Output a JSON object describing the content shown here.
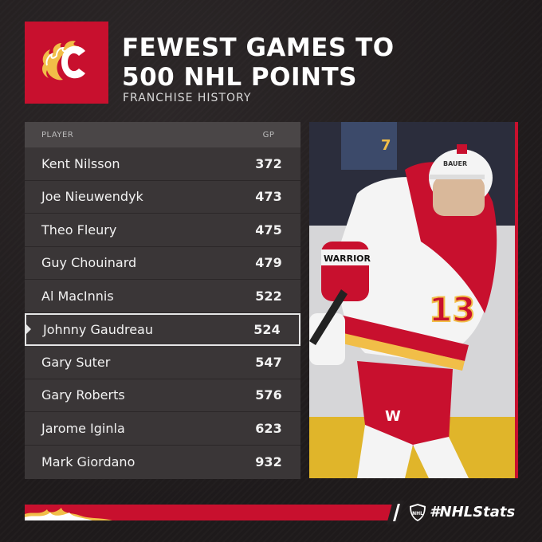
{
  "header": {
    "title_line1": "FEWEST GAMES TO",
    "title_line2": "500 NHL POINTS",
    "subtitle": "FRANCHISE HISTORY"
  },
  "table": {
    "col_player": "PLAYER",
    "col_gp": "GP",
    "rows": [
      {
        "player": "Kent Nilsson",
        "gp": "372"
      },
      {
        "player": "Joe Nieuwendyk",
        "gp": "473"
      },
      {
        "player": "Theo Fleury",
        "gp": "475"
      },
      {
        "player": "Guy Chouinard",
        "gp": "479"
      },
      {
        "player": "Al MacInnis",
        "gp": "522"
      },
      {
        "player": "Johnny Gaudreau",
        "gp": "524"
      },
      {
        "player": "Gary Suter",
        "gp": "547"
      },
      {
        "player": "Gary Roberts",
        "gp": "576"
      },
      {
        "player": "Jarome Iginla",
        "gp": "623"
      },
      {
        "player": "Mark Giordano",
        "gp": "932"
      }
    ],
    "highlight_index": 5
  },
  "photo": {
    "jersey_number": "13",
    "helmet_brand": "BAUER",
    "glove_brand": "WARRIOR",
    "pants_logo": "W"
  },
  "footer": {
    "hashtag": "#NHLStats",
    "league_logo": "NHL"
  },
  "colors": {
    "brand_red": "#c8102e",
    "background": "#231f20",
    "table_bg": "#3a3637",
    "gold": "#f1be48"
  },
  "icons": {
    "team_logo": "flaming-c-logo-icon",
    "league_logo": "nhl-shield-icon"
  }
}
